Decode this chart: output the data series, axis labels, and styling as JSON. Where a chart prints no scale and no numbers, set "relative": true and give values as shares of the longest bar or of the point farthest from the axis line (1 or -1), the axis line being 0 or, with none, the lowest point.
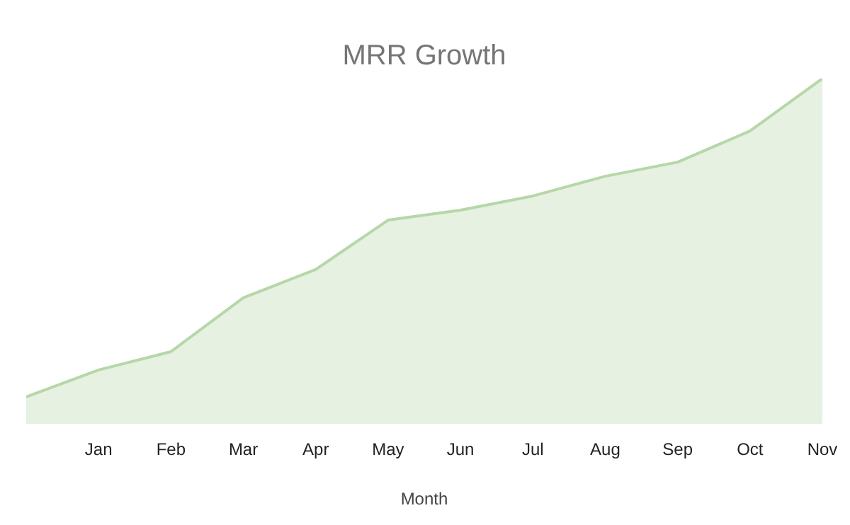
{
  "chart_data": {
    "type": "area",
    "title": "MRR Growth",
    "xlabel": "Month",
    "relative": true,
    "categories": [
      null,
      "Jan",
      "Feb",
      "Mar",
      "Apr",
      "May",
      "Jun",
      "Jul",
      "Aug",
      "Sep",
      "Oct",
      "Nov"
    ],
    "series": [
      {
        "color": "#b6d7a8",
        "values": [
          0.078,
          0.156,
          0.209,
          0.365,
          0.447,
          0.59,
          0.619,
          0.66,
          0.717,
          0.758,
          0.848,
          1
        ]
      }
    ],
    "grid": false
  }
}
